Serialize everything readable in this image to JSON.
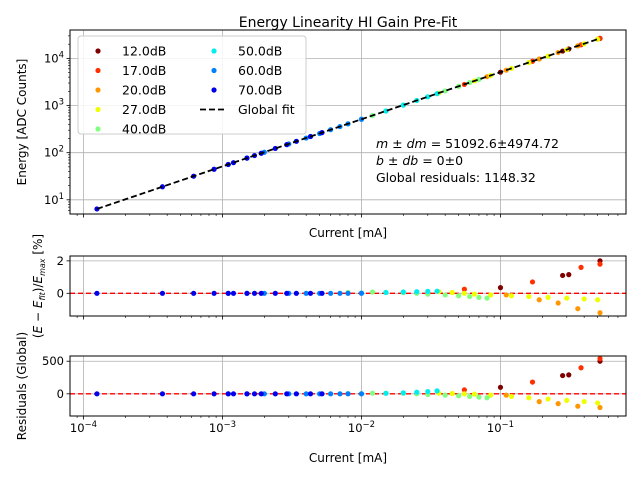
{
  "chart_data": [
    {
      "type": "scatter",
      "title": "Energy Linearity HI Gain Pre-Fit",
      "xlabel": "Current [mA]",
      "ylabel": "Energy [ADC Counts]",
      "xscale": "log",
      "yscale": "log",
      "xlim": [
        8e-05,
        0.8
      ],
      "ylim": [
        5,
        40000
      ],
      "grid": true,
      "x_ticks": [
        {
          "v": 0.0001,
          "base": "10",
          "exp": "−4"
        },
        {
          "v": 0.001,
          "base": "10",
          "exp": "−3"
        },
        {
          "v": 0.01,
          "base": "10",
          "exp": "−2"
        },
        {
          "v": 0.1,
          "base": "10",
          "exp": "−1"
        }
      ],
      "y_ticks": [
        {
          "v": 10,
          "base": "10",
          "exp": "1"
        },
        {
          "v": 100,
          "base": "10",
          "exp": "2"
        },
        {
          "v": 1000,
          "base": "10",
          "exp": "3"
        },
        {
          "v": 10000,
          "base": "10",
          "exp": "4"
        }
      ],
      "annotations": [
        {
          "prefix": "m ± dm",
          "value": " = 51092.6±4974.72"
        },
        {
          "prefix": "b ± db",
          "value": " = 0±0"
        },
        {
          "prefix": "",
          "value": "Global residuals: 1148.32"
        }
      ],
      "legend_placement": "top-left",
      "series": [
        {
          "name": "12.0dB",
          "color": "#800000",
          "x": [
            0.1,
            0.28,
            0.31,
            0.52
          ],
          "y": [
            5100,
            14300,
            15800,
            26600
          ]
        },
        {
          "name": "17.0dB",
          "color": "#ff3000",
          "x": [
            0.055,
            0.17,
            0.38,
            0.52
          ],
          "y": [
            2800,
            8700,
            19400,
            26600
          ]
        },
        {
          "name": "20.0dB",
          "color": "#ff9800",
          "x": [
            0.08,
            0.11,
            0.19,
            0.26,
            0.36,
            0.5
          ],
          "y": [
            4090,
            5620,
            9710,
            13300,
            18400,
            25500
          ]
        },
        {
          "name": "27.0dB",
          "color": "#eeff00",
          "x": [
            0.036,
            0.05,
            0.065,
            0.085,
            0.12,
            0.16,
            0.22,
            0.3,
            0.4,
            0.5
          ],
          "y": [
            1840,
            2550,
            3320,
            4340,
            6130,
            8180,
            11200,
            15300,
            20400,
            25500
          ]
        },
        {
          "name": "40.0dB",
          "color": "#80ff80",
          "x": [
            0.008,
            0.012,
            0.015,
            0.02,
            0.025,
            0.03,
            0.04,
            0.05,
            0.06,
            0.07
          ],
          "y": [
            409,
            613,
            766,
            1020,
            1280,
            1530,
            2040,
            2550,
            3070,
            3580
          ]
        },
        {
          "name": "50.0dB",
          "color": "#00eeee",
          "x": [
            0.01,
            0.015,
            0.02,
            0.025,
            0.03,
            0.035
          ],
          "y": [
            511,
            766,
            1020,
            1280,
            1530,
            1790
          ]
        },
        {
          "name": "60.0dB",
          "color": "#0080ff",
          "x": [
            0.0011,
            0.0015,
            0.002,
            0.003,
            0.004,
            0.005,
            0.006,
            0.007,
            0.008,
            0.01
          ],
          "y": [
            56,
            77,
            102,
            153,
            204,
            255,
            307,
            358,
            409,
            511
          ]
        },
        {
          "name": "70.0dB",
          "color": "#0000ee",
          "x": [
            0.000125,
            0.00037,
            0.00062,
            0.00087,
            0.0011,
            0.0012,
            0.0015,
            0.0017,
            0.0019,
            0.0024,
            0.0029,
            0.0034,
            0.0043,
            0.0052
          ],
          "y": [
            6.4,
            18.9,
            31.7,
            44.5,
            56.2,
            61.3,
            76.6,
            86.9,
            97.1,
            123,
            148,
            174,
            220,
            266
          ]
        },
        {
          "name": "Global fit",
          "style": "dashed",
          "color": "#000000",
          "x": [
            0.000125,
            0.52
          ],
          "y": [
            6.4,
            26600
          ]
        }
      ]
    },
    {
      "type": "scatter",
      "title": "",
      "xlabel": "",
      "ylabel_parts": {
        "a": "(",
        "E": "E",
        "mid": " − ",
        "Ef": "E",
        "fit": "fit",
        "close": ")/",
        "Emax": "E",
        "max": "max",
        "unit": " [%]"
      },
      "xscale": "log",
      "xlim": [
        8e-05,
        0.8
      ],
      "ylim": [
        -1.4,
        2.3
      ],
      "y_ticks": [
        {
          "v": 0,
          "label": "0"
        },
        {
          "v": 2,
          "label": "2"
        }
      ],
      "reference_line": {
        "y": 0,
        "color": "#ff0000",
        "style": "dashed"
      },
      "series": [
        {
          "name": "12.0dB",
          "color": "#800000",
          "x": [
            0.1,
            0.28,
            0.31,
            0.52
          ],
          "y": [
            0.35,
            1.1,
            1.15,
            2.0
          ]
        },
        {
          "name": "17.0dB",
          "color": "#ff3000",
          "x": [
            0.055,
            0.17,
            0.38,
            0.52
          ],
          "y": [
            0.25,
            0.7,
            1.6,
            1.8
          ]
        },
        {
          "name": "20.0dB",
          "color": "#ff9800",
          "x": [
            0.11,
            0.19,
            0.26,
            0.36,
            0.52
          ],
          "y": [
            -0.1,
            -0.4,
            -0.6,
            -0.95,
            -1.2
          ]
        },
        {
          "name": "27.0dB",
          "color": "#eeff00",
          "x": [
            0.036,
            0.045,
            0.055,
            0.065,
            0.085,
            0.12,
            0.16,
            0.22,
            0.3,
            0.4,
            0.5
          ],
          "y": [
            0.1,
            0.05,
            0.0,
            -0.05,
            -0.1,
            -0.15,
            -0.2,
            -0.25,
            -0.3,
            -0.35,
            -0.4
          ]
        },
        {
          "name": "40.0dB",
          "color": "#80ff80",
          "x": [
            0.008,
            0.012,
            0.015,
            0.02,
            0.025,
            0.03,
            0.04,
            0.05,
            0.06,
            0.07,
            0.08
          ],
          "y": [
            0.05,
            0.08,
            0.06,
            0.04,
            0.0,
            -0.05,
            -0.1,
            -0.15,
            -0.2,
            -0.25,
            -0.3
          ]
        },
        {
          "name": "50.0dB",
          "color": "#00eeee",
          "x": [
            0.01,
            0.015,
            0.02,
            0.025,
            0.03,
            0.035
          ],
          "y": [
            0.02,
            0.05,
            0.08,
            0.1,
            0.12,
            0.13
          ]
        },
        {
          "name": "60.0dB",
          "color": "#0080ff",
          "x": [
            0.0011,
            0.0015,
            0.002,
            0.003,
            0.004,
            0.005,
            0.006,
            0.007,
            0.008,
            0.01
          ],
          "y": [
            0,
            0,
            0,
            0,
            0,
            0,
            0,
            0,
            0,
            0
          ]
        },
        {
          "name": "70.0dB",
          "color": "#0000ee",
          "x": [
            0.000125,
            0.00037,
            0.00062,
            0.00087,
            0.0011,
            0.0012,
            0.0015,
            0.0017,
            0.0019,
            0.0024,
            0.0029,
            0.0034,
            0.0043,
            0.0052
          ],
          "y": [
            0,
            0,
            0,
            0,
            0,
            0,
            0,
            0,
            0,
            0,
            0,
            0,
            0,
            0
          ]
        }
      ]
    },
    {
      "type": "scatter",
      "title": "",
      "xlabel": "Current [mA]",
      "ylabel": "Residuals (Global)",
      "xscale": "log",
      "xlim": [
        8e-05,
        0.8
      ],
      "ylim": [
        -340,
        580
      ],
      "x_ticks": [
        {
          "v": 0.0001,
          "base": "10",
          "exp": "−4"
        },
        {
          "v": 0.001,
          "base": "10",
          "exp": "−3"
        },
        {
          "v": 0.01,
          "base": "10",
          "exp": "−2"
        },
        {
          "v": 0.1,
          "base": "10",
          "exp": "−1"
        }
      ],
      "y_ticks": [
        {
          "v": 0,
          "label": "0"
        },
        {
          "v": 500,
          "label": "500"
        }
      ],
      "reference_line": {
        "y": 0,
        "color": "#ff0000",
        "style": "dashed"
      },
      "series": [
        {
          "name": "12.0dB",
          "color": "#800000",
          "x": [
            0.1,
            0.28,
            0.31,
            0.52
          ],
          "y": [
            100,
            280,
            290,
            500
          ]
        },
        {
          "name": "17.0dB",
          "color": "#ff3000",
          "x": [
            0.055,
            0.17,
            0.38,
            0.52
          ],
          "y": [
            60,
            180,
            400,
            540
          ]
        },
        {
          "name": "20.0dB",
          "color": "#ff9800",
          "x": [
            0.11,
            0.19,
            0.26,
            0.36,
            0.52
          ],
          "y": [
            -20,
            -120,
            -150,
            -190,
            -210
          ]
        },
        {
          "name": "27.0dB",
          "color": "#eeff00",
          "x": [
            0.036,
            0.045,
            0.055,
            0.065,
            0.085,
            0.12,
            0.16,
            0.22,
            0.3,
            0.4,
            0.5
          ],
          "y": [
            10,
            5,
            0,
            -5,
            -20,
            -40,
            -60,
            -80,
            -100,
            -120,
            -140
          ]
        },
        {
          "name": "40.0dB",
          "color": "#80ff80",
          "x": [
            0.008,
            0.012,
            0.015,
            0.02,
            0.025,
            0.03,
            0.04,
            0.05,
            0.06,
            0.07,
            0.08
          ],
          "y": [
            5,
            10,
            10,
            8,
            0,
            -10,
            -20,
            -30,
            -40,
            -50,
            -60
          ]
        },
        {
          "name": "50.0dB",
          "color": "#00eeee",
          "x": [
            0.01,
            0.015,
            0.02,
            0.025,
            0.03,
            0.035
          ],
          "y": [
            2,
            8,
            15,
            25,
            35,
            45
          ]
        },
        {
          "name": "60.0dB",
          "color": "#0080ff",
          "x": [
            0.0011,
            0.0015,
            0.002,
            0.003,
            0.004,
            0.005,
            0.006,
            0.007,
            0.008,
            0.01
          ],
          "y": [
            0,
            0,
            0,
            0,
            0,
            0,
            0,
            0,
            0,
            0
          ]
        },
        {
          "name": "70.0dB",
          "color": "#0000ee",
          "x": [
            0.000125,
            0.00037,
            0.00062,
            0.00087,
            0.0011,
            0.0012,
            0.0015,
            0.0017,
            0.0019,
            0.0024,
            0.0029,
            0.0034,
            0.0043,
            0.0052
          ],
          "y": [
            0,
            0,
            0,
            0,
            0,
            0,
            0,
            0,
            0,
            0,
            0,
            0,
            0,
            0
          ]
        }
      ]
    }
  ]
}
